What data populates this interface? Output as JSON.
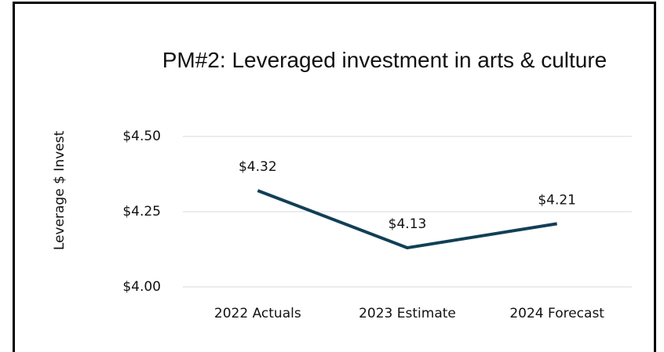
{
  "chart_data": {
    "type": "line",
    "title": "PM#2: Leveraged investment in arts & culture",
    "y_label": "Leverage $ Invest",
    "categories": [
      "2022 Actuals",
      "2023 Estimate",
      "2024 Forecast"
    ],
    "series": [
      {
        "name": "Leverage",
        "color": "#123f57",
        "values": [
          4.32,
          4.13,
          4.21
        ],
        "value_labels": [
          "$4.32",
          "$4.13",
          "$4.21"
        ]
      }
    ],
    "ylim": [
      4.0,
      4.5
    ],
    "yticks": [
      {
        "value": 4.0,
        "label": "$4.00"
      },
      {
        "value": 4.25,
        "label": "$4.25"
      },
      {
        "value": 4.5,
        "label": "$4.50"
      }
    ],
    "grid": true
  }
}
